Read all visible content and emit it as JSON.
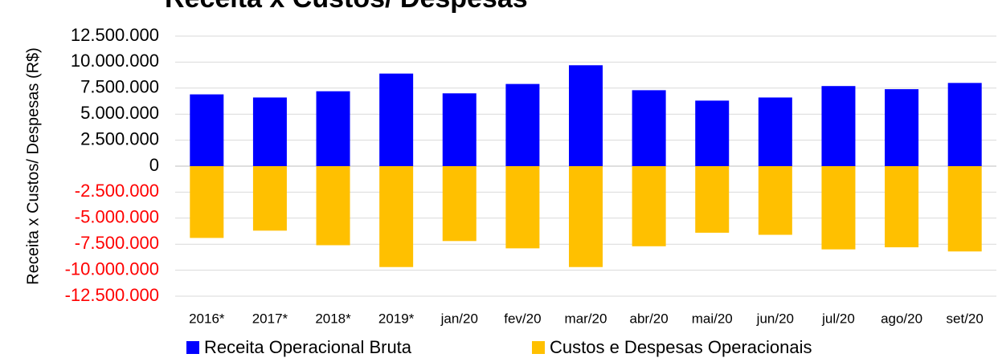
{
  "chart_data": {
    "type": "bar",
    "title": "Receita x Custos/ Despesas",
    "ylabel": "Receita x Custos/ Despesas (R$)",
    "categories": [
      "2016*",
      "2017*",
      "2018*",
      "2019*",
      "jan/20",
      "fev/20",
      "mar/20",
      "abr/20",
      "mai/20",
      "jun/20",
      "jul/20",
      "ago/20",
      "set/20"
    ],
    "series": [
      {
        "name": "Receita Operacional Bruta",
        "color": "#0000ff",
        "values": [
          6900000,
          6600000,
          7200000,
          8900000,
          7000000,
          7900000,
          9700000,
          7300000,
          6300000,
          6600000,
          7700000,
          7400000,
          8000000
        ]
      },
      {
        "name": "Custos e Despesas Operacionais",
        "color": "#ffc000",
        "values": [
          -6900000,
          -6200000,
          -7600000,
          -9700000,
          -7200000,
          -7900000,
          -9700000,
          -7700000,
          -6400000,
          -6600000,
          -8000000,
          -7800000,
          -8200000
        ]
      }
    ],
    "ylim": [
      -12500000,
      12500000
    ],
    "yticks": [
      {
        "value": 12500000,
        "label": "12.500.000"
      },
      {
        "value": 10000000,
        "label": "10.000.000"
      },
      {
        "value": 7500000,
        "label": "7.500.000"
      },
      {
        "value": 5000000,
        "label": "5.000.000"
      },
      {
        "value": 2500000,
        "label": "2.500.000"
      },
      0,
      {
        "value": -2500000,
        "label": "-2.500.000"
      },
      {
        "value": -5000000,
        "label": "-5.000.000"
      },
      {
        "value": -7500000,
        "label": "-7.500.000"
      },
      {
        "value": -10000000,
        "label": "-10.000.000"
      },
      {
        "value": -12500000,
        "label": "-12.500.000"
      }
    ],
    "ytick_negative_color": "#ff0000",
    "grid": true,
    "legend": "bottom"
  }
}
